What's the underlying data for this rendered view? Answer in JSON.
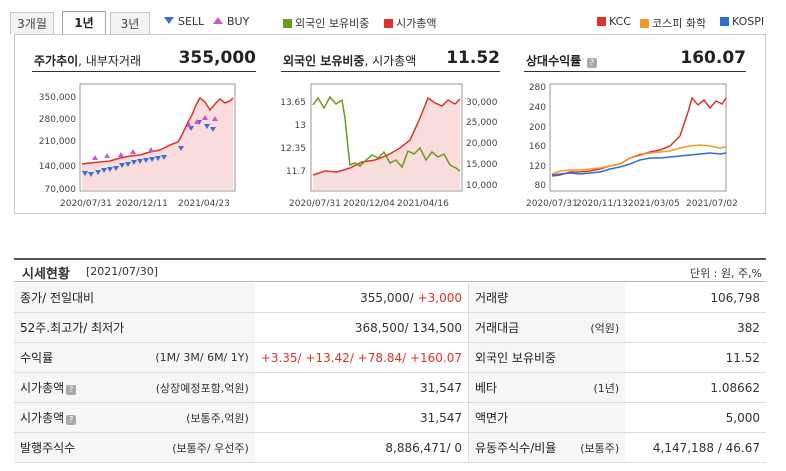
{
  "tabs": [
    {
      "label": "3개월",
      "active": false
    },
    {
      "label": "1년",
      "active": true
    },
    {
      "label": "3년",
      "active": false
    }
  ],
  "legend_trade": {
    "sell": "SELL",
    "buy": "BUY",
    "sell_color": "#3a6fd8",
    "buy_color": "#c55ad0"
  },
  "legend_foreign": {
    "ratio": "외국인 보유비중",
    "cap": "시가총액",
    "ratio_color": "#6a9b1a",
    "cap_color": "#e0322a"
  },
  "legend_relative": {
    "kcc": "KCC",
    "kospi_chem": "코스피 화학",
    "kospi": "KOSPI",
    "kcc_color": "#e0322a",
    "chem_color": "#f19a24",
    "kospi_color": "#2f6fd1"
  },
  "charts": [
    {
      "title_bold": "주가추이",
      "title_rest": ", 내부자거래",
      "value": "355,000",
      "y_ticks": [
        "350,000",
        "280,000",
        "210,000",
        "140,000",
        "70,000"
      ],
      "x_ticks": [
        "2020/07/31",
        "2020/12/11",
        "2021/04/23"
      ]
    },
    {
      "title_bold": "외국인 보유비중",
      "title_rest": ", 시가총액",
      "value": "11.52",
      "y_ticks_left": [
        "13.65",
        "13",
        "12.35",
        "11.7"
      ],
      "y_ticks_right": [
        "30,000",
        "25,000",
        "20,000",
        "15,000",
        "10,000"
      ],
      "x_ticks": [
        "2020/07/31",
        "2020/12/04",
        "2021/04/16"
      ]
    },
    {
      "title_bold": "상대수익률",
      "title_rest": "",
      "value": "160.07",
      "y_ticks": [
        "280",
        "240",
        "200",
        "160",
        "120",
        "80"
      ],
      "x_ticks": [
        "2020/07/31",
        "2020/11/13",
        "2021/03/05",
        "2021/07/02"
      ]
    }
  ],
  "status": {
    "title": "시세현황",
    "date": "[2021/07/30]",
    "unit": "단위 : 원, 주,%",
    "rows": [
      {
        "l_label": "종가/ 전일대비",
        "l_sub": "",
        "l_value": "355,000/ ",
        "l_value_red": "+3,000",
        "r_label": "거래량",
        "r_sub": "",
        "r_value": "106,798"
      },
      {
        "l_label": "52주.최고가/ 최저가",
        "l_sub": "",
        "l_value": "368,500/ 134,500",
        "l_value_red": "",
        "r_label": "거래대금",
        "r_sub": "(억원)",
        "r_value": "382"
      },
      {
        "l_label": "수익률",
        "l_sub": "(1M/ 3M/ 6M/ 1Y)",
        "l_value": "",
        "l_value_red": "+3.35/ +13.42/ +78.84/ +160.07",
        "r_label": "외국인 보유비중",
        "r_sub": "",
        "r_value": "11.52"
      },
      {
        "l_label": "시가총액",
        "l_sub": "(상장예정포함,억원)",
        "l_value": "31,547",
        "l_value_red": "",
        "r_label": "베타",
        "r_sub": "(1년)",
        "r_value": "1.08662"
      },
      {
        "l_label": "시가총액",
        "l_sub": "(보통주,억원)",
        "l_value": "31,547",
        "l_value_red": "",
        "r_label": "액면가",
        "r_sub": "",
        "r_value": "5,000"
      },
      {
        "l_label": "발행주식수",
        "l_sub": "(보통주/ 우선주)",
        "l_value": "8,886,471/ 0",
        "l_value_red": "",
        "r_label": "유동주식수/비율",
        "r_sub": "(보통주)",
        "r_value": "4,147,188 / 46.67"
      }
    ]
  }
}
